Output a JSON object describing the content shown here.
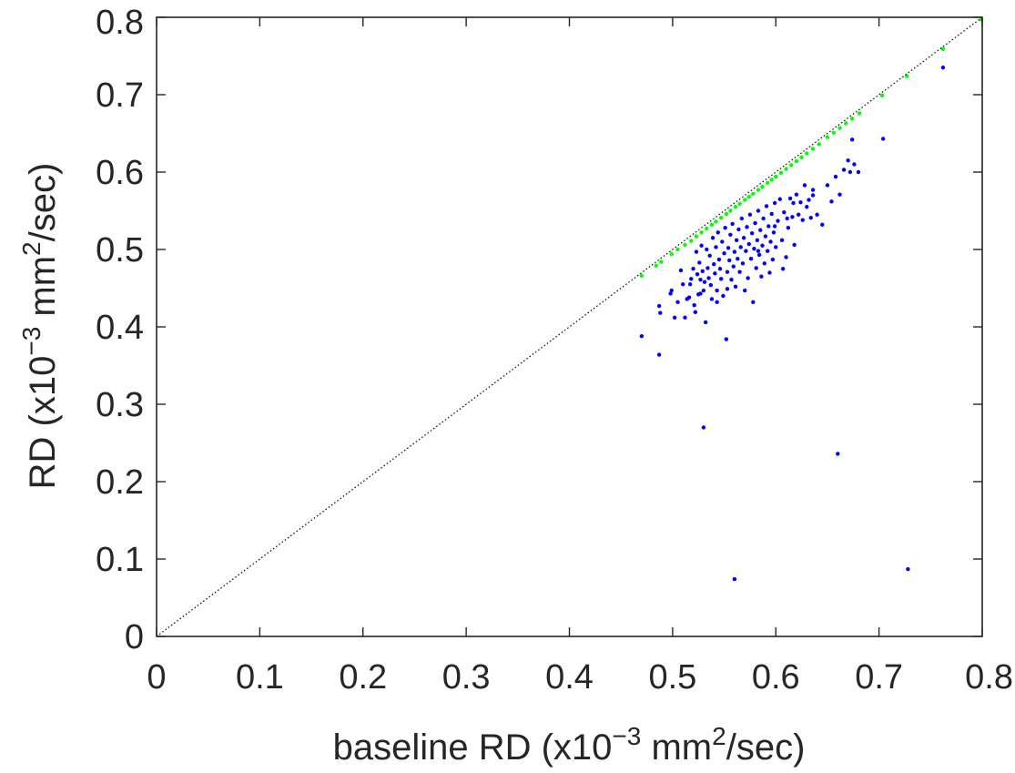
{
  "chart_data": {
    "type": "scatter",
    "title": "",
    "xlabel": {
      "pre": "baseline RD (x10",
      "exp": "−3",
      "mid": " mm",
      "exp2": "2",
      "post": "/sec)"
    },
    "ylabel": {
      "pre": "RD (x10",
      "exp": "−3",
      "mid": " mm",
      "exp2": "2",
      "post": "/sec)"
    },
    "xlim": [
      0,
      0.8
    ],
    "ylim": [
      0,
      0.8
    ],
    "xticks": [
      "0",
      "0.1",
      "0.2",
      "0.3",
      "0.4",
      "0.5",
      "0.6",
      "0.7",
      "0.8"
    ],
    "yticks": [
      "0",
      "0.1",
      "0.2",
      "0.3",
      "0.4",
      "0.5",
      "0.6",
      "0.7",
      "0.8"
    ],
    "grid": false,
    "legend": "none",
    "identity_line": {
      "from": [
        0,
        0
      ],
      "to": [
        0.8,
        0.8
      ],
      "style": "dotted",
      "color": "#000000"
    },
    "series": [
      {
        "color": "#0000ff",
        "points": [
          [
            0.47,
            0.388
          ],
          [
            0.487,
            0.364
          ],
          [
            0.487,
            0.427
          ],
          [
            0.488,
            0.418
          ],
          [
            0.498,
            0.443
          ],
          [
            0.499,
            0.447
          ],
          [
            0.502,
            0.412
          ],
          [
            0.505,
            0.432
          ],
          [
            0.508,
            0.473
          ],
          [
            0.51,
            0.455
          ],
          [
            0.512,
            0.412
          ],
          [
            0.514,
            0.436
          ],
          [
            0.516,
            0.438
          ],
          [
            0.518,
            0.462
          ],
          [
            0.52,
            0.475
          ],
          [
            0.521,
            0.428
          ],
          [
            0.522,
            0.419
          ],
          [
            0.523,
            0.497
          ],
          [
            0.524,
            0.468
          ],
          [
            0.525,
            0.442
          ],
          [
            0.526,
            0.483
          ],
          [
            0.527,
            0.461
          ],
          [
            0.528,
            0.505
          ],
          [
            0.529,
            0.472
          ],
          [
            0.53,
            0.447
          ],
          [
            0.531,
            0.458
          ],
          [
            0.532,
            0.406
          ],
          [
            0.533,
            0.5
          ],
          [
            0.534,
            0.476
          ],
          [
            0.535,
            0.463
          ],
          [
            0.536,
            0.492
          ],
          [
            0.537,
            0.454
          ],
          [
            0.538,
            0.436
          ],
          [
            0.539,
            0.515
          ],
          [
            0.54,
            0.481
          ],
          [
            0.541,
            0.469
          ],
          [
            0.542,
            0.503
          ],
          [
            0.543,
            0.447
          ],
          [
            0.544,
            0.522
          ],
          [
            0.545,
            0.487
          ],
          [
            0.546,
            0.475
          ],
          [
            0.547,
            0.462
          ],
          [
            0.548,
            0.51
          ],
          [
            0.549,
            0.44
          ],
          [
            0.55,
            0.495
          ],
          [
            0.551,
            0.528
          ],
          [
            0.552,
            0.384
          ],
          [
            0.553,
            0.471
          ],
          [
            0.554,
            0.502
          ],
          [
            0.555,
            0.486
          ],
          [
            0.556,
            0.519
          ],
          [
            0.557,
            0.461
          ],
          [
            0.558,
            0.533
          ],
          [
            0.559,
            0.478
          ],
          [
            0.56,
            0.497
          ],
          [
            0.561,
            0.452
          ],
          [
            0.562,
            0.512
          ],
          [
            0.563,
            0.488
          ],
          [
            0.564,
            0.526
          ],
          [
            0.565,
            0.471
          ],
          [
            0.566,
            0.503
          ],
          [
            0.567,
            0.54
          ],
          [
            0.568,
            0.482
          ],
          [
            0.569,
            0.515
          ],
          [
            0.57,
            0.447
          ],
          [
            0.571,
            0.498
          ],
          [
            0.572,
            0.529
          ],
          [
            0.573,
            0.463
          ],
          [
            0.574,
            0.507
          ],
          [
            0.575,
            0.545
          ],
          [
            0.576,
            0.488
          ],
          [
            0.577,
            0.521
          ],
          [
            0.578,
            0.432
          ],
          [
            0.579,
            0.501
          ],
          [
            0.58,
            0.534
          ],
          [
            0.581,
            0.476
          ],
          [
            0.582,
            0.512
          ],
          [
            0.583,
            0.55
          ],
          [
            0.584,
            0.493
          ],
          [
            0.585,
            0.525
          ],
          [
            0.586,
            0.465
          ],
          [
            0.587,
            0.505
          ],
          [
            0.588,
            0.54
          ],
          [
            0.589,
            0.482
          ],
          [
            0.59,
            0.517
          ],
          [
            0.591,
            0.556
          ],
          [
            0.592,
            0.498
          ],
          [
            0.593,
            0.53
          ],
          [
            0.594,
            0.47
          ],
          [
            0.595,
            0.51
          ],
          [
            0.596,
            0.546
          ],
          [
            0.597,
            0.487
          ],
          [
            0.598,
            0.522
          ],
          [
            0.599,
            0.56
          ],
          [
            0.6,
            0.503
          ],
          [
            0.602,
            0.537
          ],
          [
            0.604,
            0.565
          ],
          [
            0.606,
            0.512
          ],
          [
            0.608,
            0.548
          ],
          [
            0.61,
            0.49
          ],
          [
            0.612,
            0.528
          ],
          [
            0.614,
            0.566
          ],
          [
            0.616,
            0.542
          ],
          [
            0.618,
            0.506
          ],
          [
            0.62,
            0.571
          ],
          [
            0.622,
            0.545
          ],
          [
            0.624,
            0.561
          ],
          [
            0.626,
            0.538
          ],
          [
            0.628,
            0.583
          ],
          [
            0.63,
            0.555
          ],
          [
            0.632,
            0.564
          ],
          [
            0.634,
            0.541
          ],
          [
            0.636,
            0.577
          ],
          [
            0.64,
            0.545
          ],
          [
            0.645,
            0.532
          ],
          [
            0.65,
            0.583
          ],
          [
            0.654,
            0.562
          ],
          [
            0.658,
            0.594
          ],
          [
            0.662,
            0.571
          ],
          [
            0.666,
            0.603
          ],
          [
            0.67,
            0.615
          ],
          [
            0.672,
            0.6
          ],
          [
            0.674,
            0.642
          ],
          [
            0.676,
            0.61
          ],
          [
            0.68,
            0.6
          ],
          [
            0.704,
            0.643
          ],
          [
            0.762,
            0.735
          ],
          [
            0.53,
            0.27
          ],
          [
            0.66,
            0.236
          ],
          [
            0.56,
            0.074
          ],
          [
            0.728,
            0.087
          ],
          [
            0.517,
            0.455
          ],
          [
            0.527,
            0.443
          ],
          [
            0.543,
            0.432
          ],
          [
            0.553,
            0.449
          ],
          [
            0.583,
            0.498
          ],
          [
            0.599,
            0.53
          ],
          [
            0.607,
            0.475
          ],
          [
            0.617,
            0.56
          ],
          [
            0.636,
            0.57
          ],
          [
            0.611,
            0.54
          ]
        ]
      },
      {
        "color": "#00ff00",
        "points": [
          [
            0.47,
            0.466
          ],
          [
            0.484,
            0.479
          ],
          [
            0.489,
            0.484
          ],
          [
            0.499,
            0.494
          ],
          [
            0.505,
            0.5
          ],
          [
            0.512,
            0.506
          ],
          [
            0.518,
            0.511
          ],
          [
            0.523,
            0.517
          ],
          [
            0.528,
            0.522
          ],
          [
            0.533,
            0.527
          ],
          [
            0.538,
            0.532
          ],
          [
            0.542,
            0.536
          ],
          [
            0.547,
            0.541
          ],
          [
            0.552,
            0.546
          ],
          [
            0.556,
            0.55
          ],
          [
            0.561,
            0.555
          ],
          [
            0.565,
            0.559
          ],
          [
            0.57,
            0.564
          ],
          [
            0.574,
            0.568
          ],
          [
            0.578,
            0.572
          ],
          [
            0.583,
            0.577
          ],
          [
            0.587,
            0.581
          ],
          [
            0.592,
            0.586
          ],
          [
            0.596,
            0.59
          ],
          [
            0.6,
            0.594
          ],
          [
            0.605,
            0.599
          ],
          [
            0.61,
            0.604
          ],
          [
            0.615,
            0.609
          ],
          [
            0.62,
            0.614
          ],
          [
            0.625,
            0.619
          ],
          [
            0.63,
            0.624
          ],
          [
            0.636,
            0.63
          ],
          [
            0.642,
            0.636
          ],
          [
            0.65,
            0.645
          ],
          [
            0.656,
            0.651
          ],
          [
            0.662,
            0.657
          ],
          [
            0.668,
            0.663
          ],
          [
            0.674,
            0.669
          ],
          [
            0.681,
            0.676
          ],
          [
            0.703,
            0.699
          ],
          [
            0.727,
            0.724
          ],
          [
            0.762,
            0.759
          ],
          [
            0.799,
            0.797
          ]
        ]
      }
    ]
  }
}
